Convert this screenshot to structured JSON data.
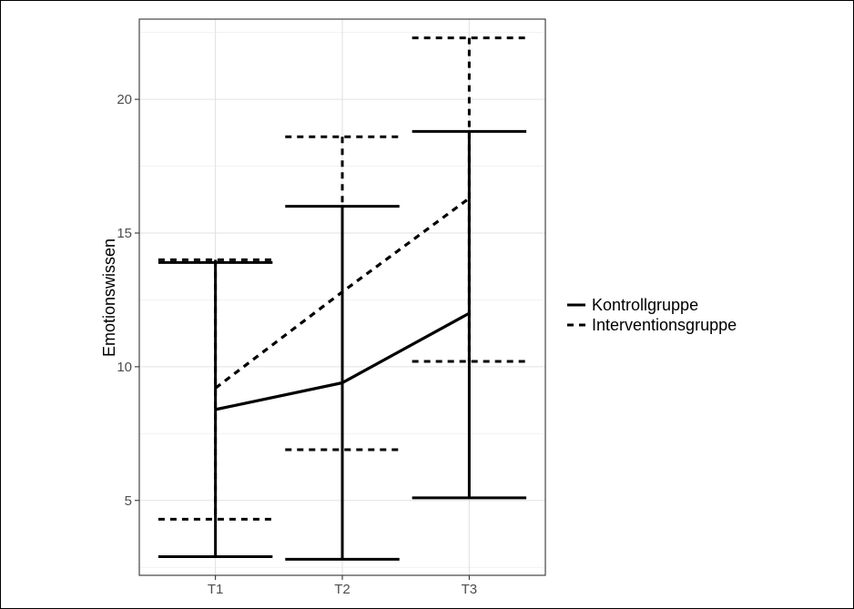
{
  "chart_data": {
    "type": "line",
    "categories": [
      "T1",
      "T2",
      "T3"
    ],
    "xlabel": "",
    "ylabel": "Emotionswissen",
    "ylim": [
      2.2,
      23.0
    ],
    "yticks": [
      5,
      10,
      15,
      20
    ],
    "grid": true,
    "legend_position": "right",
    "series": [
      {
        "name": "Kontrollgruppe",
        "linetype": "solid",
        "values": [
          8.4,
          9.4,
          12.0
        ],
        "lower": [
          2.9,
          2.8,
          5.1
        ],
        "upper": [
          13.9,
          16.0,
          18.8
        ]
      },
      {
        "name": "Interventionsgruppe",
        "linetype": "dashed",
        "values": [
          9.2,
          12.8,
          16.3
        ],
        "lower": [
          4.3,
          6.9,
          10.2
        ],
        "upper": [
          14.0,
          18.6,
          22.3
        ]
      }
    ]
  }
}
